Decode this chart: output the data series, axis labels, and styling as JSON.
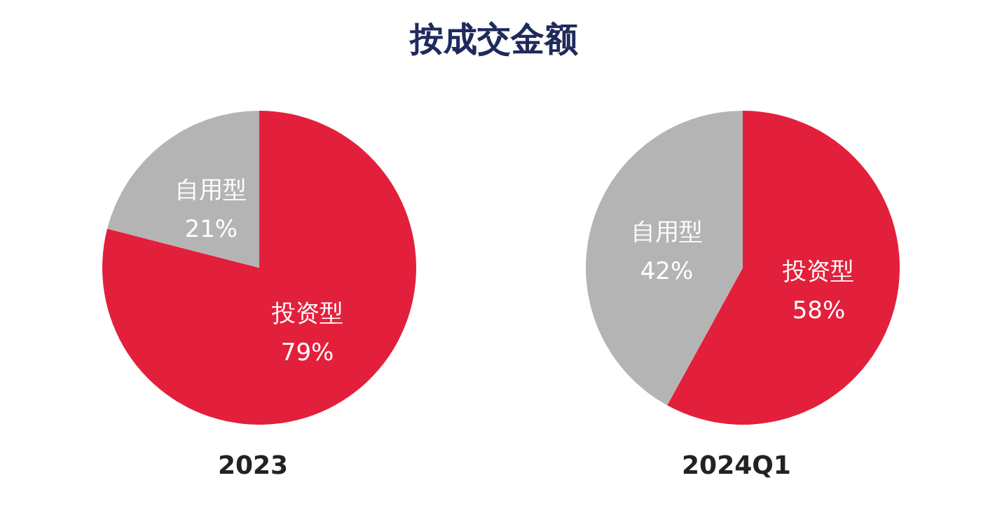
{
  "chart_data": [
    {
      "type": "pie",
      "title": "按成交金额",
      "xlabel": "2023",
      "categories": [
        "投资型",
        "自用型"
      ],
      "values": [
        79,
        21
      ],
      "colors": [
        "#e3203c",
        "#b4b4b4"
      ],
      "value_labels": [
        "79%",
        "21%"
      ]
    },
    {
      "type": "pie",
      "xlabel": "2024Q1",
      "categories": [
        "投资型",
        "自用型"
      ],
      "values": [
        58,
        42
      ],
      "colors": [
        "#e3203c",
        "#b4b4b4"
      ],
      "value_labels": [
        "58%",
        "42%"
      ]
    }
  ]
}
